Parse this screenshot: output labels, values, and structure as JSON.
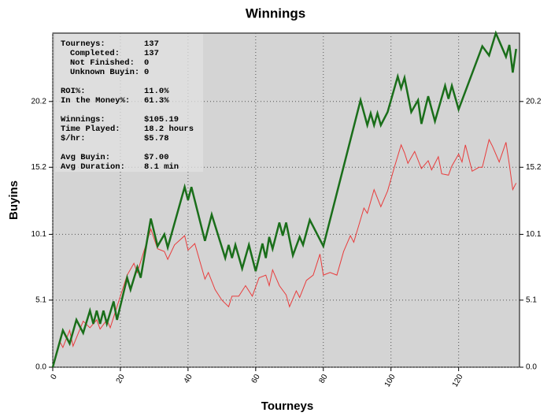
{
  "chart_data": {
    "type": "line",
    "title": "Winnings",
    "xlabel": "Tourneys",
    "ylabel": "Buyins",
    "xlim": [
      0,
      138
    ],
    "ylim": [
      0,
      25.4
    ],
    "xticks": [
      0,
      20,
      40,
      60,
      80,
      100,
      120
    ],
    "yticks": [
      {
        "value": 0,
        "label": "0.0"
      },
      5.1,
      10.1,
      15.2,
      20.2
    ],
    "grid": true,
    "background": "#d4d4d4",
    "series": [
      {
        "color": "#1a6e1a",
        "width": 2.5,
        "x": [
          0,
          3,
          5,
          7,
          9,
          11,
          12,
          13,
          14,
          15,
          16,
          18,
          19,
          22,
          23,
          25,
          26,
          29,
          31,
          33,
          34,
          39,
          40,
          41,
          45,
          47,
          51,
          52,
          53,
          54,
          56,
          58,
          60,
          62,
          63,
          64,
          65,
          67,
          68,
          69,
          71,
          73,
          74,
          76,
          80,
          91,
          93,
          94,
          95,
          96,
          97,
          99,
          102,
          103,
          104,
          106,
          108,
          109,
          111,
          113,
          116,
          117,
          118,
          120,
          127,
          129,
          131,
          134,
          135,
          136,
          137
        ],
        "values": [
          0,
          2.8,
          1.8,
          3.6,
          2.6,
          4.3,
          3.3,
          4.3,
          3.3,
          4.3,
          3.3,
          5.0,
          3.6,
          6.8,
          5.9,
          7.6,
          6.8,
          11.3,
          9.2,
          10.1,
          9.1,
          13.7,
          12.7,
          13.7,
          9.6,
          11.6,
          8.3,
          9.3,
          8.3,
          9.3,
          7.5,
          9.3,
          7.3,
          9.4,
          8.3,
          9.9,
          9.0,
          11.0,
          10.0,
          11.0,
          8.5,
          9.9,
          9.3,
          11.2,
          9.2,
          20.3,
          18.4,
          19.3,
          18.4,
          19.3,
          18.4,
          19.4,
          22.1,
          21.2,
          22.0,
          19.4,
          20.3,
          18.5,
          20.6,
          18.7,
          21.4,
          20.4,
          21.4,
          19.6,
          24.4,
          23.7,
          25.4,
          23.6,
          24.5,
          22.4,
          24.2
        ]
      },
      {
        "color": "#e83c3c",
        "width": 1,
        "x": [
          0,
          2,
          3,
          5,
          6,
          9,
          11,
          13,
          14,
          16,
          17,
          19,
          22,
          24,
          25,
          29,
          31,
          33,
          34,
          36,
          39,
          40,
          42,
          45,
          46,
          48,
          50,
          52,
          53,
          55,
          57,
          59,
          61,
          63,
          64,
          65,
          67,
          69,
          70,
          72,
          73,
          75,
          77,
          79,
          80,
          82,
          84,
          86,
          88,
          89,
          92,
          93,
          95,
          97,
          99,
          101,
          103,
          104,
          105,
          107,
          109,
          111,
          112,
          114,
          115,
          117,
          118,
          120,
          121,
          122,
          124,
          126,
          127,
          129,
          130,
          132,
          134,
          135,
          136,
          137
        ],
        "values": [
          0,
          2,
          1.5,
          2.8,
          1.6,
          3.5,
          3.0,
          3.6,
          2.9,
          3.6,
          3.0,
          4.6,
          7.0,
          7.9,
          7.2,
          10.5,
          9.0,
          8.8,
          8.2,
          9.3,
          10.0,
          8.9,
          9.4,
          6.7,
          7.2,
          5.9,
          5.1,
          4.6,
          5.4,
          5.4,
          6.2,
          5.4,
          6.8,
          7.0,
          6.2,
          7.4,
          6.2,
          5.5,
          4.6,
          5.8,
          5.3,
          6.6,
          7.0,
          8.6,
          7.0,
          7.2,
          7.0,
          8.8,
          10.0,
          9.5,
          12.1,
          11.7,
          13.5,
          12.2,
          13.4,
          15.2,
          16.9,
          16.3,
          15.5,
          16.4,
          15.1,
          15.7,
          15.0,
          16.0,
          14.7,
          14.6,
          15.3,
          16.2,
          15.6,
          16.9,
          14.9,
          15.2,
          15.2,
          17.3,
          16.8,
          15.6,
          17.1,
          15.4,
          13.5,
          14.0
        ]
      }
    ],
    "stats": [
      [
        {
          "label": "Tourneys:",
          "value": "137",
          "color": "#1a1a8c"
        },
        {
          "label": "Completed:",
          "value": "137",
          "color": "#1a1a8c",
          "indent": 1
        },
        {
          "label": "Not Finished:",
          "value": "0",
          "color": "#1a1a8c",
          "indent": 1
        },
        {
          "label": "Unknown Buyin:",
          "value": "0",
          "color": "#1a1a8c",
          "indent": 1
        }
      ],
      [
        {
          "label": "ROI%:",
          "value": "11.0%",
          "color": "#e81818"
        },
        {
          "label": "In the Money%:",
          "value": "61.3%",
          "color": "#1a1a8c"
        }
      ],
      [
        {
          "label": "Winnings:",
          "value": "$105.19",
          "color": "#e81818"
        },
        {
          "label": "Time Played:",
          "value": "18.2 hours",
          "color": "#1a1a8c"
        },
        {
          "label": "$/hr:",
          "value": "$5.78",
          "color": "#e81818"
        }
      ],
      [
        {
          "label": "Avg Buyin:",
          "value": "$7.00",
          "color": "#1a1a8c"
        },
        {
          "label": "Avg Duration:",
          "value": "8.1 min",
          "color": "#1a1a8c"
        }
      ]
    ]
  }
}
